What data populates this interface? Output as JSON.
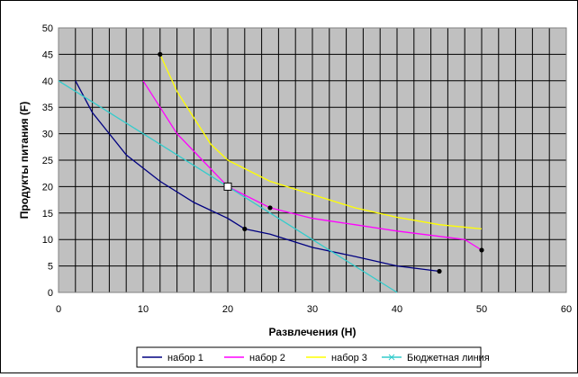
{
  "chart_data": {
    "type": "line",
    "title": "",
    "xlabel": "Развлечения (H)",
    "ylabel": "Продукты питания (F)",
    "xlim": [
      0,
      60
    ],
    "ylim": [
      0,
      50
    ],
    "x_ticks": [
      "0",
      "10",
      "20",
      "30",
      "40",
      "50",
      "60"
    ],
    "y_ticks": [
      "0",
      "5",
      "10",
      "15",
      "20",
      "25",
      "30",
      "35",
      "40",
      "45",
      "50"
    ],
    "grid": true,
    "plot_background": "#c0c0c0",
    "legend_position": "bottom",
    "series": [
      {
        "name": "набор 1",
        "color": "#000080",
        "points": [
          [
            2,
            40
          ],
          [
            4,
            34
          ],
          [
            6,
            30
          ],
          [
            8,
            26
          ],
          [
            12,
            21
          ],
          [
            16,
            17
          ],
          [
            20,
            14
          ],
          [
            22,
            12
          ],
          [
            25,
            11
          ],
          [
            30,
            8.5
          ],
          [
            35,
            6.8
          ],
          [
            40,
            5
          ],
          [
            45,
            4
          ]
        ]
      },
      {
        "name": "набор 2",
        "color": "#ff00ff",
        "points": [
          [
            10,
            40
          ],
          [
            12,
            35
          ],
          [
            14,
            30
          ],
          [
            17,
            25
          ],
          [
            20,
            20
          ],
          [
            25,
            16
          ],
          [
            30,
            14
          ],
          [
            35,
            12.8
          ],
          [
            40,
            11.6
          ],
          [
            48,
            10
          ],
          [
            50,
            8
          ]
        ]
      },
      {
        "name": "набор 3",
        "color": "#ffff00",
        "points": [
          [
            12,
            45
          ],
          [
            14,
            38
          ],
          [
            16,
            33
          ],
          [
            18,
            28
          ],
          [
            20,
            25
          ],
          [
            25,
            21
          ],
          [
            30,
            18.5
          ],
          [
            35,
            16
          ],
          [
            40,
            14.2
          ],
          [
            45,
            12.8
          ],
          [
            50,
            12
          ]
        ]
      },
      {
        "name": "Бюджетная линия",
        "color": "#33cccc",
        "points": [
          [
            0,
            40
          ],
          [
            10,
            30
          ],
          [
            20,
            20
          ],
          [
            30,
            10
          ],
          [
            40,
            0
          ]
        ]
      }
    ],
    "marker_points": [
      [
        12,
        45
      ],
      [
        22,
        12
      ],
      [
        25,
        16
      ],
      [
        45,
        4
      ],
      [
        50,
        8
      ]
    ],
    "highlight_point": [
      20,
      20
    ]
  }
}
